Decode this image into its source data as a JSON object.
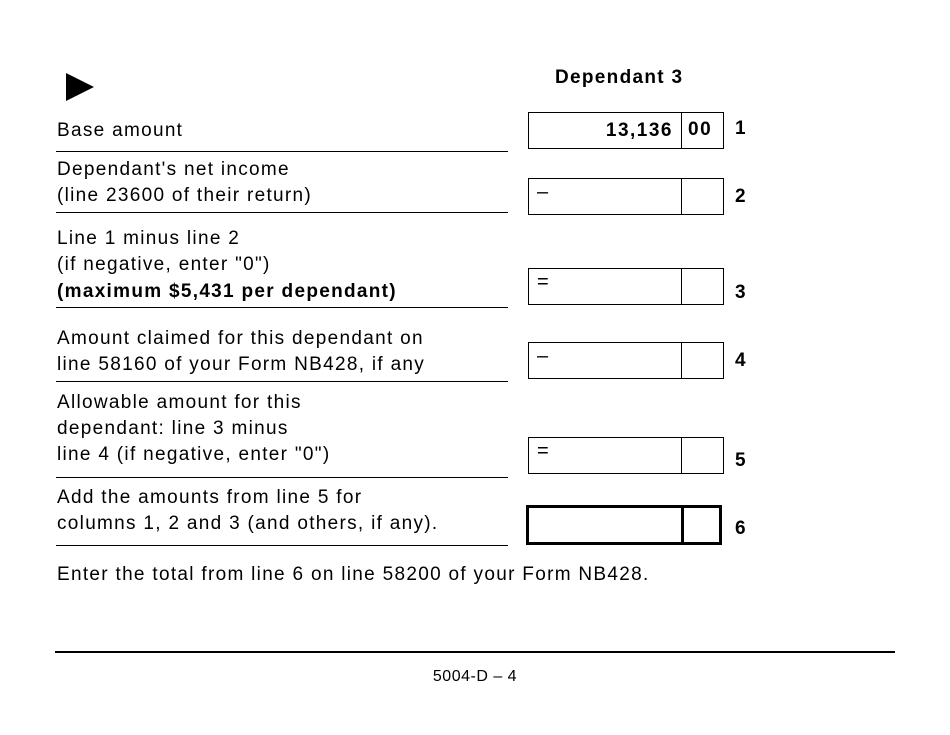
{
  "header": {
    "arrow_icon": "right-triangle",
    "column_title": "Dependant 3"
  },
  "lines": [
    {
      "number": "1",
      "label": [
        "Base amount"
      ],
      "sign": "",
      "amount": "13,136",
      "cents": "00"
    },
    {
      "number": "2",
      "label": [
        "Dependant's net income",
        "(line 23600 of their return)"
      ],
      "sign": "–",
      "amount": "",
      "cents": ""
    },
    {
      "number": "3",
      "label": [
        "Line 1 minus line 2",
        "(if negative, enter \"0\")",
        "(maximum $5,431 per dependant)"
      ],
      "sign": "=",
      "amount": "",
      "cents": ""
    },
    {
      "number": "4",
      "label": [
        "Amount claimed for this dependant on",
        "line 58160 of your Form NB428, if any"
      ],
      "sign": "–",
      "amount": "",
      "cents": ""
    },
    {
      "number": "5",
      "label": [
        "Allowable amount for this",
        "dependant: line 3 minus",
        "line 4 (if negative, enter \"0\")"
      ],
      "sign": "=",
      "amount": "",
      "cents": ""
    },
    {
      "number": "6",
      "label": [
        "Add the amounts from line 5 for",
        "columns 1, 2 and 3 (and others, if any)."
      ],
      "sign": "",
      "amount": "",
      "cents": ""
    }
  ],
  "instruction": "Enter the total from line 6 on line 58200 of your Form NB428.",
  "footer": {
    "page_id": "5004-D – 4"
  }
}
